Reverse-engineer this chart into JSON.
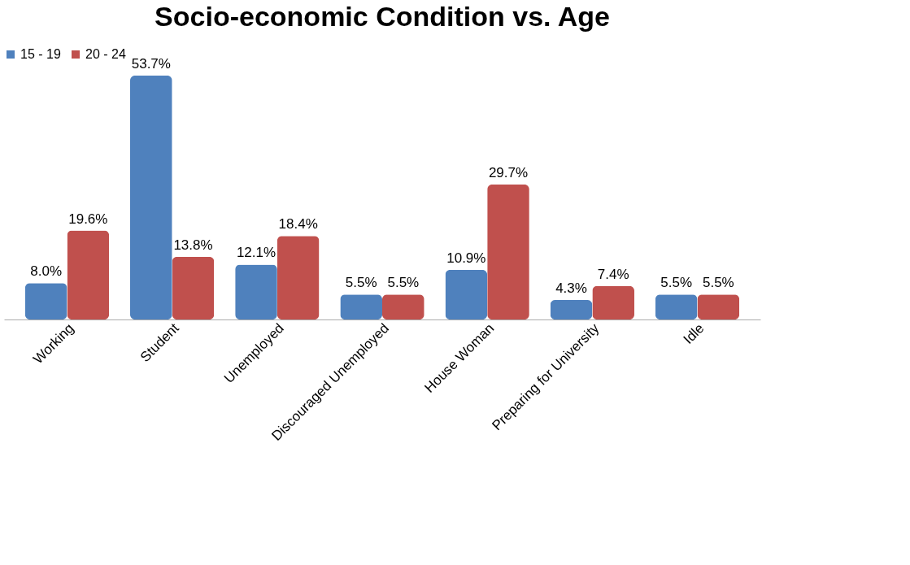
{
  "chart_data": {
    "type": "bar",
    "title": "Socio-economic Condition vs. Age",
    "categories": [
      "Working",
      "Student",
      "Unemployed",
      "Discouraged Unemployed",
      "House Woman",
      "Preparing for University",
      "Idle"
    ],
    "series": [
      {
        "name": "15 - 19",
        "color": "#4f81bd",
        "values": [
          8.0,
          53.7,
          12.1,
          5.5,
          10.9,
          4.3,
          5.5
        ],
        "value_labels": [
          "8.0%",
          "53.7%",
          "12.1%",
          "5.5%",
          "10.9%",
          "4.3%",
          "5.5%"
        ]
      },
      {
        "name": "20 - 24",
        "color": "#c0504d",
        "values": [
          19.6,
          13.8,
          18.4,
          5.5,
          29.7,
          7.4,
          5.5
        ],
        "value_labels": [
          "19.6%",
          "13.8%",
          "18.4%",
          "5.5%",
          "29.7%",
          "7.4%",
          "5.5%"
        ]
      }
    ],
    "legend": "top",
    "grid": false,
    "tick_labels": "x"
  }
}
